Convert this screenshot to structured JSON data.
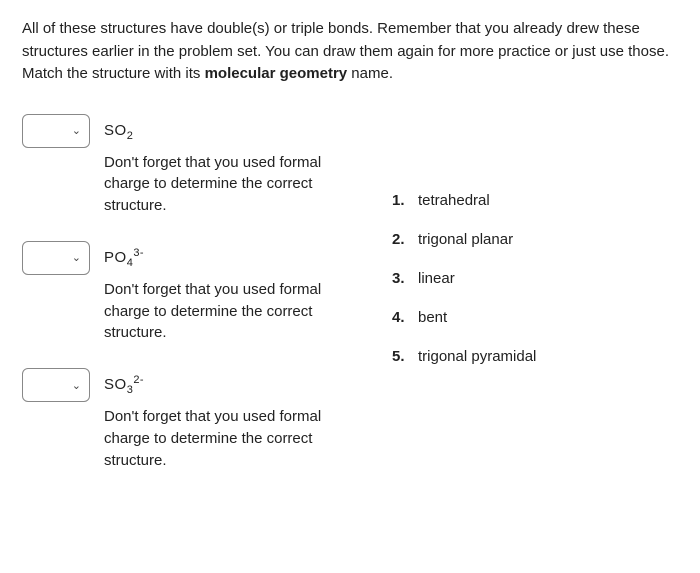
{
  "instructions": "All of these structures have double(s) or triple bonds.  Remember that you already drew these structures earlier in the problem set.  You can draw them again for more practice or just use those.  Match the structure with its molecular geometry name.",
  "hint_text": "Don't forget that you used formal charge to determine the correct structure.",
  "questions": [
    {
      "formula_base": "SO",
      "sub": "2",
      "sup": ""
    },
    {
      "formula_base": "PO",
      "sub": "4",
      "sup": "3-"
    },
    {
      "formula_base": "SO",
      "sub": "3",
      "sup": "2-"
    }
  ],
  "answers": [
    {
      "num": "1.",
      "label": "tetrahedral"
    },
    {
      "num": "2.",
      "label": "trigonal planar"
    },
    {
      "num": "3.",
      "label": "linear"
    },
    {
      "num": "4.",
      "label": "bent"
    },
    {
      "num": "5.",
      "label": "trigonal pyramidal"
    }
  ]
}
